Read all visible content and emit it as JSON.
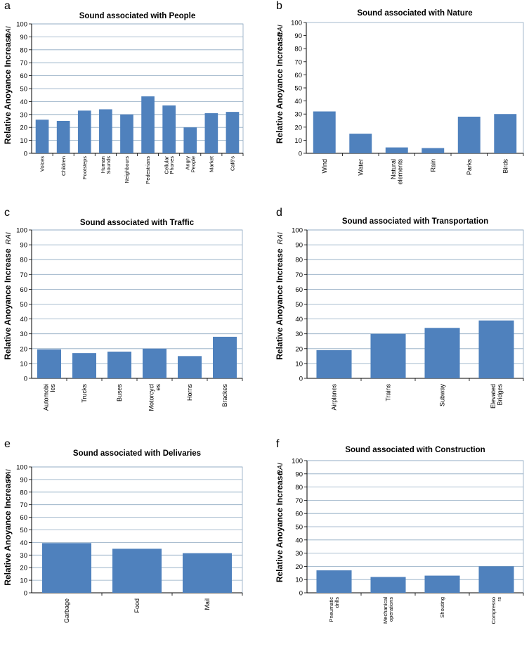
{
  "figure": {
    "panels": [
      {
        "letter": "a"
      },
      {
        "letter": "b"
      },
      {
        "letter": "c"
      },
      {
        "letter": "d"
      },
      {
        "letter": "e"
      },
      {
        "letter": "f"
      }
    ]
  },
  "colors": {
    "bar": "#4f81bd",
    "grid": "#8ea9c1",
    "axis": "#000000",
    "text": "#000000"
  },
  "chart_data": [
    {
      "type": "bar",
      "title": "Sound associated with People",
      "ylabel": "Relative Anoyance Increase",
      "ylabel_unit": "RAI",
      "ylim": [
        0,
        100
      ],
      "yticks": [
        0,
        10,
        20,
        30,
        40,
        50,
        60,
        70,
        80,
        90,
        100
      ],
      "grid": true,
      "categories": [
        "Voices",
        "Children",
        "Footsteps",
        "Human Sounds",
        "Neighbours",
        "Pedestrians",
        "Cellular Phones",
        "Angry People",
        "Market",
        "Café's"
      ],
      "values": [
        26,
        25,
        33,
        34,
        30,
        44,
        37,
        20,
        31,
        32
      ]
    },
    {
      "type": "bar",
      "title": "Sound associated with Nature",
      "ylabel": "Relative Anoyance Increase",
      "ylabel_unit": "RAI",
      "ylim": [
        0,
        100
      ],
      "yticks": [
        0,
        10,
        20,
        30,
        40,
        50,
        60,
        70,
        80,
        90,
        100
      ],
      "grid": false,
      "categories": [
        "Wind",
        "Water",
        "Natural elements",
        "Rain",
        "Parks",
        "Birds"
      ],
      "values": [
        32,
        15,
        4.5,
        4,
        28,
        30
      ]
    },
    {
      "type": "bar",
      "title": "Sound associated with Traffic",
      "ylabel": "Relative Anoyance Increase",
      "ylabel_unit": "RAI",
      "ylim": [
        0,
        100
      ],
      "yticks": [
        0,
        10,
        20,
        30,
        40,
        50,
        60,
        70,
        80,
        90,
        100
      ],
      "grid": true,
      "categories": [
        "Automobi les",
        "Trucks",
        "Buses",
        "Motorcycl es",
        "Horns",
        "Brackes"
      ],
      "values": [
        19.5,
        17,
        18,
        20,
        15,
        28
      ]
    },
    {
      "type": "bar",
      "title": "Sound associated with Transportation",
      "ylabel": "Relative Anoyance Increase",
      "ylabel_unit": "RAI",
      "ylim": [
        0,
        100
      ],
      "yticks": [
        0,
        10,
        20,
        30,
        40,
        50,
        60,
        70,
        80,
        90,
        100
      ],
      "grid": true,
      "categories": [
        "Airplanes",
        "Trains",
        "Subway",
        "Elevated Bridges"
      ],
      "values": [
        19,
        30,
        34,
        39
      ]
    },
    {
      "type": "bar",
      "title": "Sound associated with Delivaries",
      "ylabel": "Relative Anoyance Increase",
      "ylabel_unit": "RAI",
      "ylim": [
        0,
        100
      ],
      "yticks": [
        0,
        10,
        20,
        30,
        40,
        50,
        60,
        70,
        80,
        90,
        100
      ],
      "grid": true,
      "categories": [
        "Garbage",
        "Food",
        "Mail"
      ],
      "values": [
        39.5,
        35,
        31.5
      ]
    },
    {
      "type": "bar",
      "title": "Sound associated with Construction",
      "ylabel": "Relative Anoyance Increase",
      "ylabel_unit": "RAI",
      "ylim": [
        0,
        100
      ],
      "yticks": [
        0,
        10,
        20,
        30,
        40,
        50,
        60,
        70,
        80,
        90,
        100
      ],
      "grid": true,
      "categories": [
        "Pneumatic drills",
        "Mechanical operations",
        "Shouting",
        "Compresso rs"
      ],
      "values": [
        17,
        12,
        13,
        20
      ]
    }
  ]
}
